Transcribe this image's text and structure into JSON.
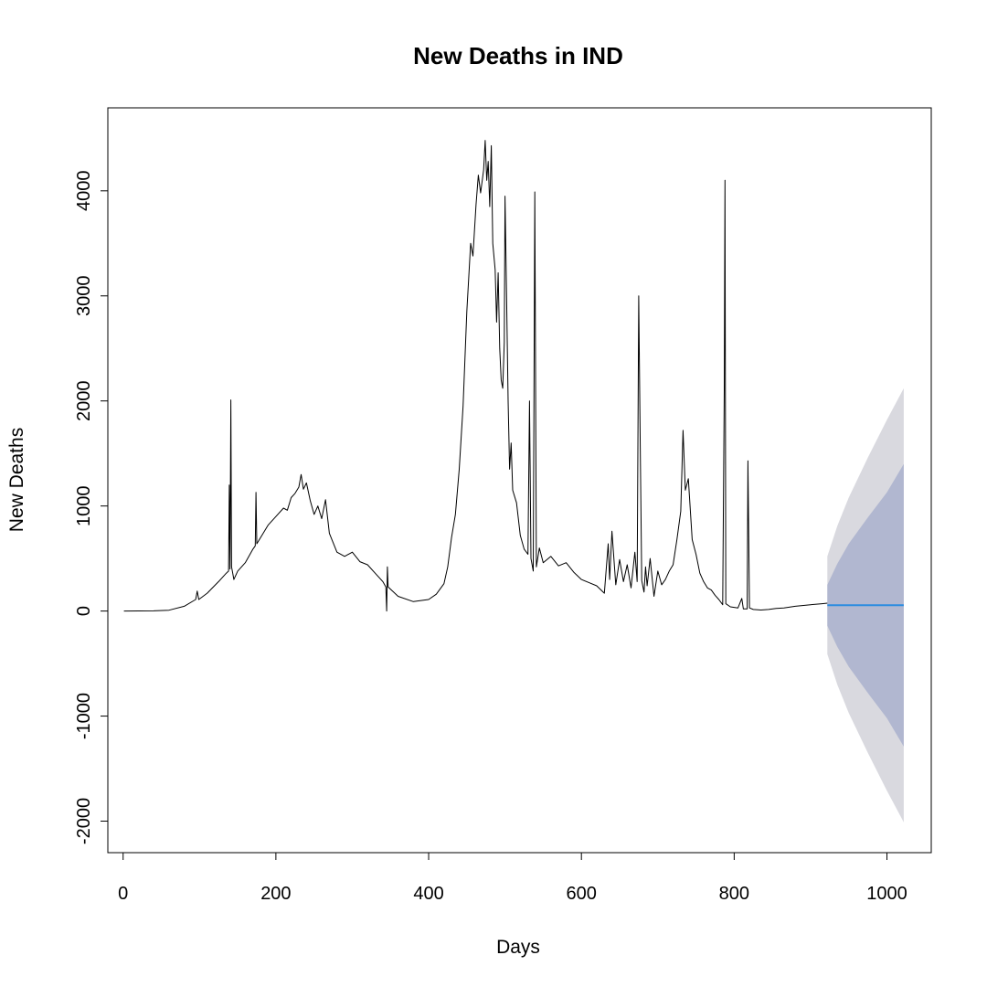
{
  "chart_data": {
    "type": "line",
    "title": "New Deaths in IND",
    "xlabel": "Days",
    "ylabel": "New Deaths",
    "xlim": [
      -20,
      1058
    ],
    "ylim": [
      -2300,
      4790
    ],
    "x_ticks": [
      0,
      200,
      400,
      600,
      800,
      1000
    ],
    "x_tick_labels": [
      "0",
      "200",
      "400",
      "600",
      "800",
      "1000"
    ],
    "y_ticks": [
      -2000,
      -1000,
      0,
      1000,
      2000,
      3000,
      4000
    ],
    "y_tick_labels": [
      "-2000",
      "-1000",
      "0",
      "1000",
      "2000",
      "3000",
      "4000"
    ],
    "grid": false,
    "series": [
      {
        "role": "observed",
        "color": "#000000",
        "points": [
          [
            1,
            0
          ],
          [
            40,
            2
          ],
          [
            60,
            8
          ],
          [
            80,
            45
          ],
          [
            95,
            110
          ],
          [
            97,
            190
          ],
          [
            99,
            110
          ],
          [
            110,
            170
          ],
          [
            125,
            280
          ],
          [
            135,
            360
          ],
          [
            138,
            380
          ],
          [
            139,
            1200
          ],
          [
            140,
            400
          ],
          [
            141,
            2010
          ],
          [
            142,
            420
          ],
          [
            145,
            300
          ],
          [
            150,
            380
          ],
          [
            160,
            460
          ],
          [
            170,
            590
          ],
          [
            173,
            620
          ],
          [
            174,
            1130
          ],
          [
            175,
            640
          ],
          [
            180,
            700
          ],
          [
            190,
            820
          ],
          [
            200,
            900
          ],
          [
            210,
            980
          ],
          [
            215,
            960
          ],
          [
            220,
            1080
          ],
          [
            225,
            1120
          ],
          [
            230,
            1180
          ],
          [
            233,
            1300
          ],
          [
            236,
            1160
          ],
          [
            240,
            1220
          ],
          [
            245,
            1050
          ],
          [
            250,
            920
          ],
          [
            255,
            1000
          ],
          [
            260,
            880
          ],
          [
            265,
            1060
          ],
          [
            270,
            740
          ],
          [
            280,
            560
          ],
          [
            290,
            520
          ],
          [
            300,
            560
          ],
          [
            310,
            470
          ],
          [
            320,
            440
          ],
          [
            330,
            360
          ],
          [
            340,
            280
          ],
          [
            344,
            230
          ],
          [
            345,
            0
          ],
          [
            346,
            420
          ],
          [
            347,
            230
          ],
          [
            360,
            140
          ],
          [
            380,
            90
          ],
          [
            400,
            110
          ],
          [
            410,
            160
          ],
          [
            420,
            260
          ],
          [
            425,
            420
          ],
          [
            430,
            700
          ],
          [
            435,
            920
          ],
          [
            440,
            1350
          ],
          [
            445,
            1950
          ],
          [
            450,
            2850
          ],
          [
            455,
            3500
          ],
          [
            458,
            3380
          ],
          [
            462,
            3870
          ],
          [
            465,
            4150
          ],
          [
            468,
            3980
          ],
          [
            472,
            4200
          ],
          [
            474,
            4480
          ],
          [
            476,
            4100
          ],
          [
            478,
            4280
          ],
          [
            480,
            3850
          ],
          [
            482,
            4430
          ],
          [
            484,
            3500
          ],
          [
            487,
            3250
          ],
          [
            489,
            2750
          ],
          [
            491,
            3220
          ],
          [
            493,
            2500
          ],
          [
            495,
            2200
          ],
          [
            497,
            2120
          ],
          [
            499,
            2560
          ],
          [
            500,
            3950
          ],
          [
            502,
            3000
          ],
          [
            504,
            2000
          ],
          [
            506,
            1350
          ],
          [
            508,
            1600
          ],
          [
            510,
            1150
          ],
          [
            515,
            1030
          ],
          [
            520,
            720
          ],
          [
            525,
            590
          ],
          [
            530,
            540
          ],
          [
            532,
            2000
          ],
          [
            534,
            500
          ],
          [
            537,
            380
          ],
          [
            539,
            3990
          ],
          [
            541,
            420
          ],
          [
            545,
            600
          ],
          [
            550,
            460
          ],
          [
            560,
            520
          ],
          [
            570,
            430
          ],
          [
            580,
            460
          ],
          [
            590,
            370
          ],
          [
            600,
            300
          ],
          [
            610,
            270
          ],
          [
            620,
            240
          ],
          [
            630,
            170
          ],
          [
            635,
            640
          ],
          [
            637,
            300
          ],
          [
            640,
            760
          ],
          [
            645,
            250
          ],
          [
            650,
            490
          ],
          [
            655,
            280
          ],
          [
            660,
            440
          ],
          [
            665,
            220
          ],
          [
            670,
            560
          ],
          [
            673,
            280
          ],
          [
            675,
            3000
          ],
          [
            677,
            1560
          ],
          [
            679,
            290
          ],
          [
            682,
            180
          ],
          [
            684,
            420
          ],
          [
            686,
            240
          ],
          [
            690,
            500
          ],
          [
            695,
            140
          ],
          [
            700,
            380
          ],
          [
            705,
            250
          ],
          [
            710,
            300
          ],
          [
            715,
            380
          ],
          [
            720,
            440
          ],
          [
            725,
            680
          ],
          [
            730,
            950
          ],
          [
            733,
            1720
          ],
          [
            736,
            1150
          ],
          [
            740,
            1260
          ],
          [
            745,
            680
          ],
          [
            750,
            540
          ],
          [
            755,
            360
          ],
          [
            760,
            280
          ],
          [
            765,
            220
          ],
          [
            770,
            200
          ],
          [
            775,
            150
          ],
          [
            780,
            110
          ],
          [
            785,
            60
          ],
          [
            787,
            2110
          ],
          [
            788,
            4100
          ],
          [
            789,
            70
          ],
          [
            795,
            40
          ],
          [
            805,
            30
          ],
          [
            810,
            120
          ],
          [
            812,
            20
          ],
          [
            817,
            20
          ],
          [
            818,
            1430
          ],
          [
            820,
            30
          ],
          [
            825,
            15
          ],
          [
            835,
            10
          ],
          [
            845,
            15
          ],
          [
            855,
            25
          ],
          [
            865,
            30
          ],
          [
            880,
            45
          ],
          [
            900,
            60
          ],
          [
            915,
            70
          ],
          [
            922,
            75
          ]
        ]
      },
      {
        "role": "forecast",
        "color": "#2B8CE0",
        "points": [
          [
            922,
            55
          ],
          [
            1022,
            55
          ]
        ]
      }
    ],
    "prediction_bands": [
      {
        "role": "95% interval",
        "color": "#D9D9DF",
        "x": [
          922,
          935,
          950,
          975,
          1000,
          1022
        ],
        "upper": [
          520,
          810,
          1080,
          1460,
          1820,
          2120
        ],
        "lower": [
          -410,
          -700,
          -970,
          -1350,
          -1710,
          -2010
        ]
      },
      {
        "role": "80% interval",
        "color": "#B1B7D0",
        "x": [
          922,
          935,
          950,
          975,
          1000,
          1022
        ],
        "upper": [
          250,
          450,
          640,
          890,
          1130,
          1400
        ],
        "lower": [
          -140,
          -340,
          -530,
          -780,
          -1020,
          -1290
        ]
      }
    ]
  }
}
